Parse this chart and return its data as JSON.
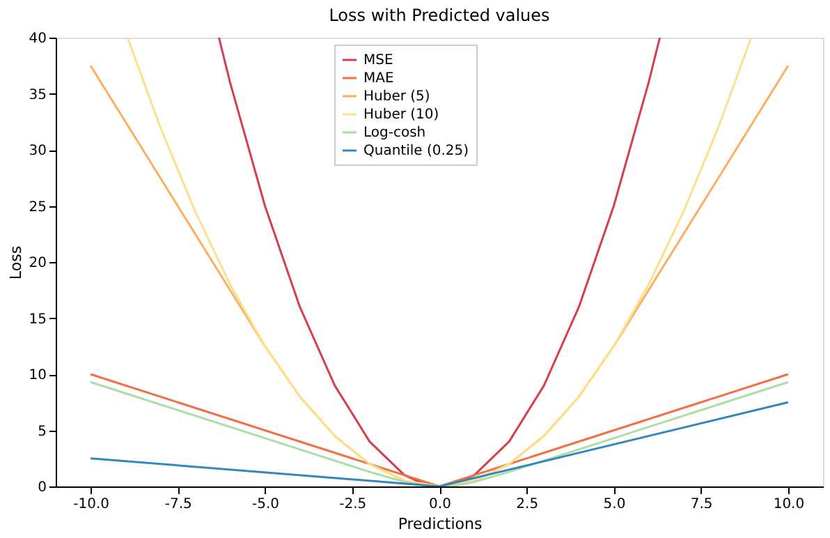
{
  "chart_data": {
    "type": "line",
    "title": "Loss with Predicted values",
    "xlabel": "Predictions",
    "ylabel": "Loss",
    "xlim": [
      -11,
      11
    ],
    "ylim": [
      0,
      40
    ],
    "xticks": [
      {
        "value": -10,
        "label": "-10.0"
      },
      {
        "value": -7.5,
        "label": "-7.5"
      },
      {
        "value": -5,
        "label": "-5.0"
      },
      {
        "value": -2.5,
        "label": "-2.5"
      },
      {
        "value": 0,
        "label": "0.0"
      },
      {
        "value": 2.5,
        "label": "2.5"
      },
      {
        "value": 5,
        "label": "5.0"
      },
      {
        "value": 7.5,
        "label": "7.5"
      },
      {
        "value": 10,
        "label": "10.0"
      }
    ],
    "yticks": [
      0,
      5,
      10,
      15,
      20,
      25,
      30,
      35,
      40
    ],
    "grid": false,
    "legend": "top",
    "marker": "none",
    "line_style": "solid",
    "series": [
      {
        "name": "MSE",
        "color": "#d53e4f",
        "x": [
          -6.32,
          -6,
          -5,
          -4,
          -3,
          -2,
          -1,
          -0.5,
          0,
          0.5,
          1,
          2,
          3,
          4,
          5,
          6,
          6.32
        ],
        "values": [
          40,
          36,
          25,
          16,
          9,
          4,
          1,
          0.3,
          0,
          0.3,
          1,
          4,
          9,
          16,
          25,
          36,
          40
        ]
      },
      {
        "name": "MAE",
        "color": "#f46d43",
        "x": [
          -10,
          0,
          10
        ],
        "values": [
          10,
          0,
          10
        ]
      },
      {
        "name": "Huber (5)",
        "color": "#fdae61",
        "x": [
          -10,
          -8,
          -6,
          -5,
          -4,
          -3,
          -2,
          -1,
          0,
          1,
          2,
          3,
          4,
          5,
          6,
          8,
          10
        ],
        "values": [
          37.5,
          27.5,
          17.5,
          12.5,
          8,
          4.5,
          2,
          0.5,
          0,
          0.5,
          2,
          4.5,
          8,
          12.5,
          17.5,
          27.5,
          37.5
        ]
      },
      {
        "name": "Huber (10)",
        "color": "#fee08b",
        "x": [
          -8.94,
          -8,
          -7,
          -6,
          -5,
          -4,
          -3,
          -2,
          -1,
          0,
          1,
          2,
          3,
          4,
          5,
          6,
          7,
          8,
          8.94
        ],
        "values": [
          40,
          32,
          24.5,
          18,
          12.5,
          8,
          4.5,
          2,
          0.5,
          0,
          0.5,
          2,
          4.5,
          8,
          12.5,
          18,
          24.5,
          32,
          40
        ]
      },
      {
        "name": "Log-cosh",
        "color": "#abdda4",
        "x": [
          -10,
          -8,
          -6,
          -4,
          -3,
          -2,
          -1,
          -0.5,
          0,
          0.5,
          1,
          2,
          3,
          4,
          6,
          8,
          10
        ],
        "values": [
          9.3,
          7.3,
          5.3,
          3.3,
          2.3,
          1.3,
          0.4,
          0.1,
          0,
          0.1,
          0.4,
          1.3,
          2.3,
          3.3,
          5.3,
          7.3,
          9.3
        ]
      },
      {
        "name": "Quantile (0.25)",
        "color": "#3288bd",
        "x": [
          -10,
          0,
          10
        ],
        "values": [
          2.5,
          0,
          7.5
        ]
      }
    ]
  }
}
